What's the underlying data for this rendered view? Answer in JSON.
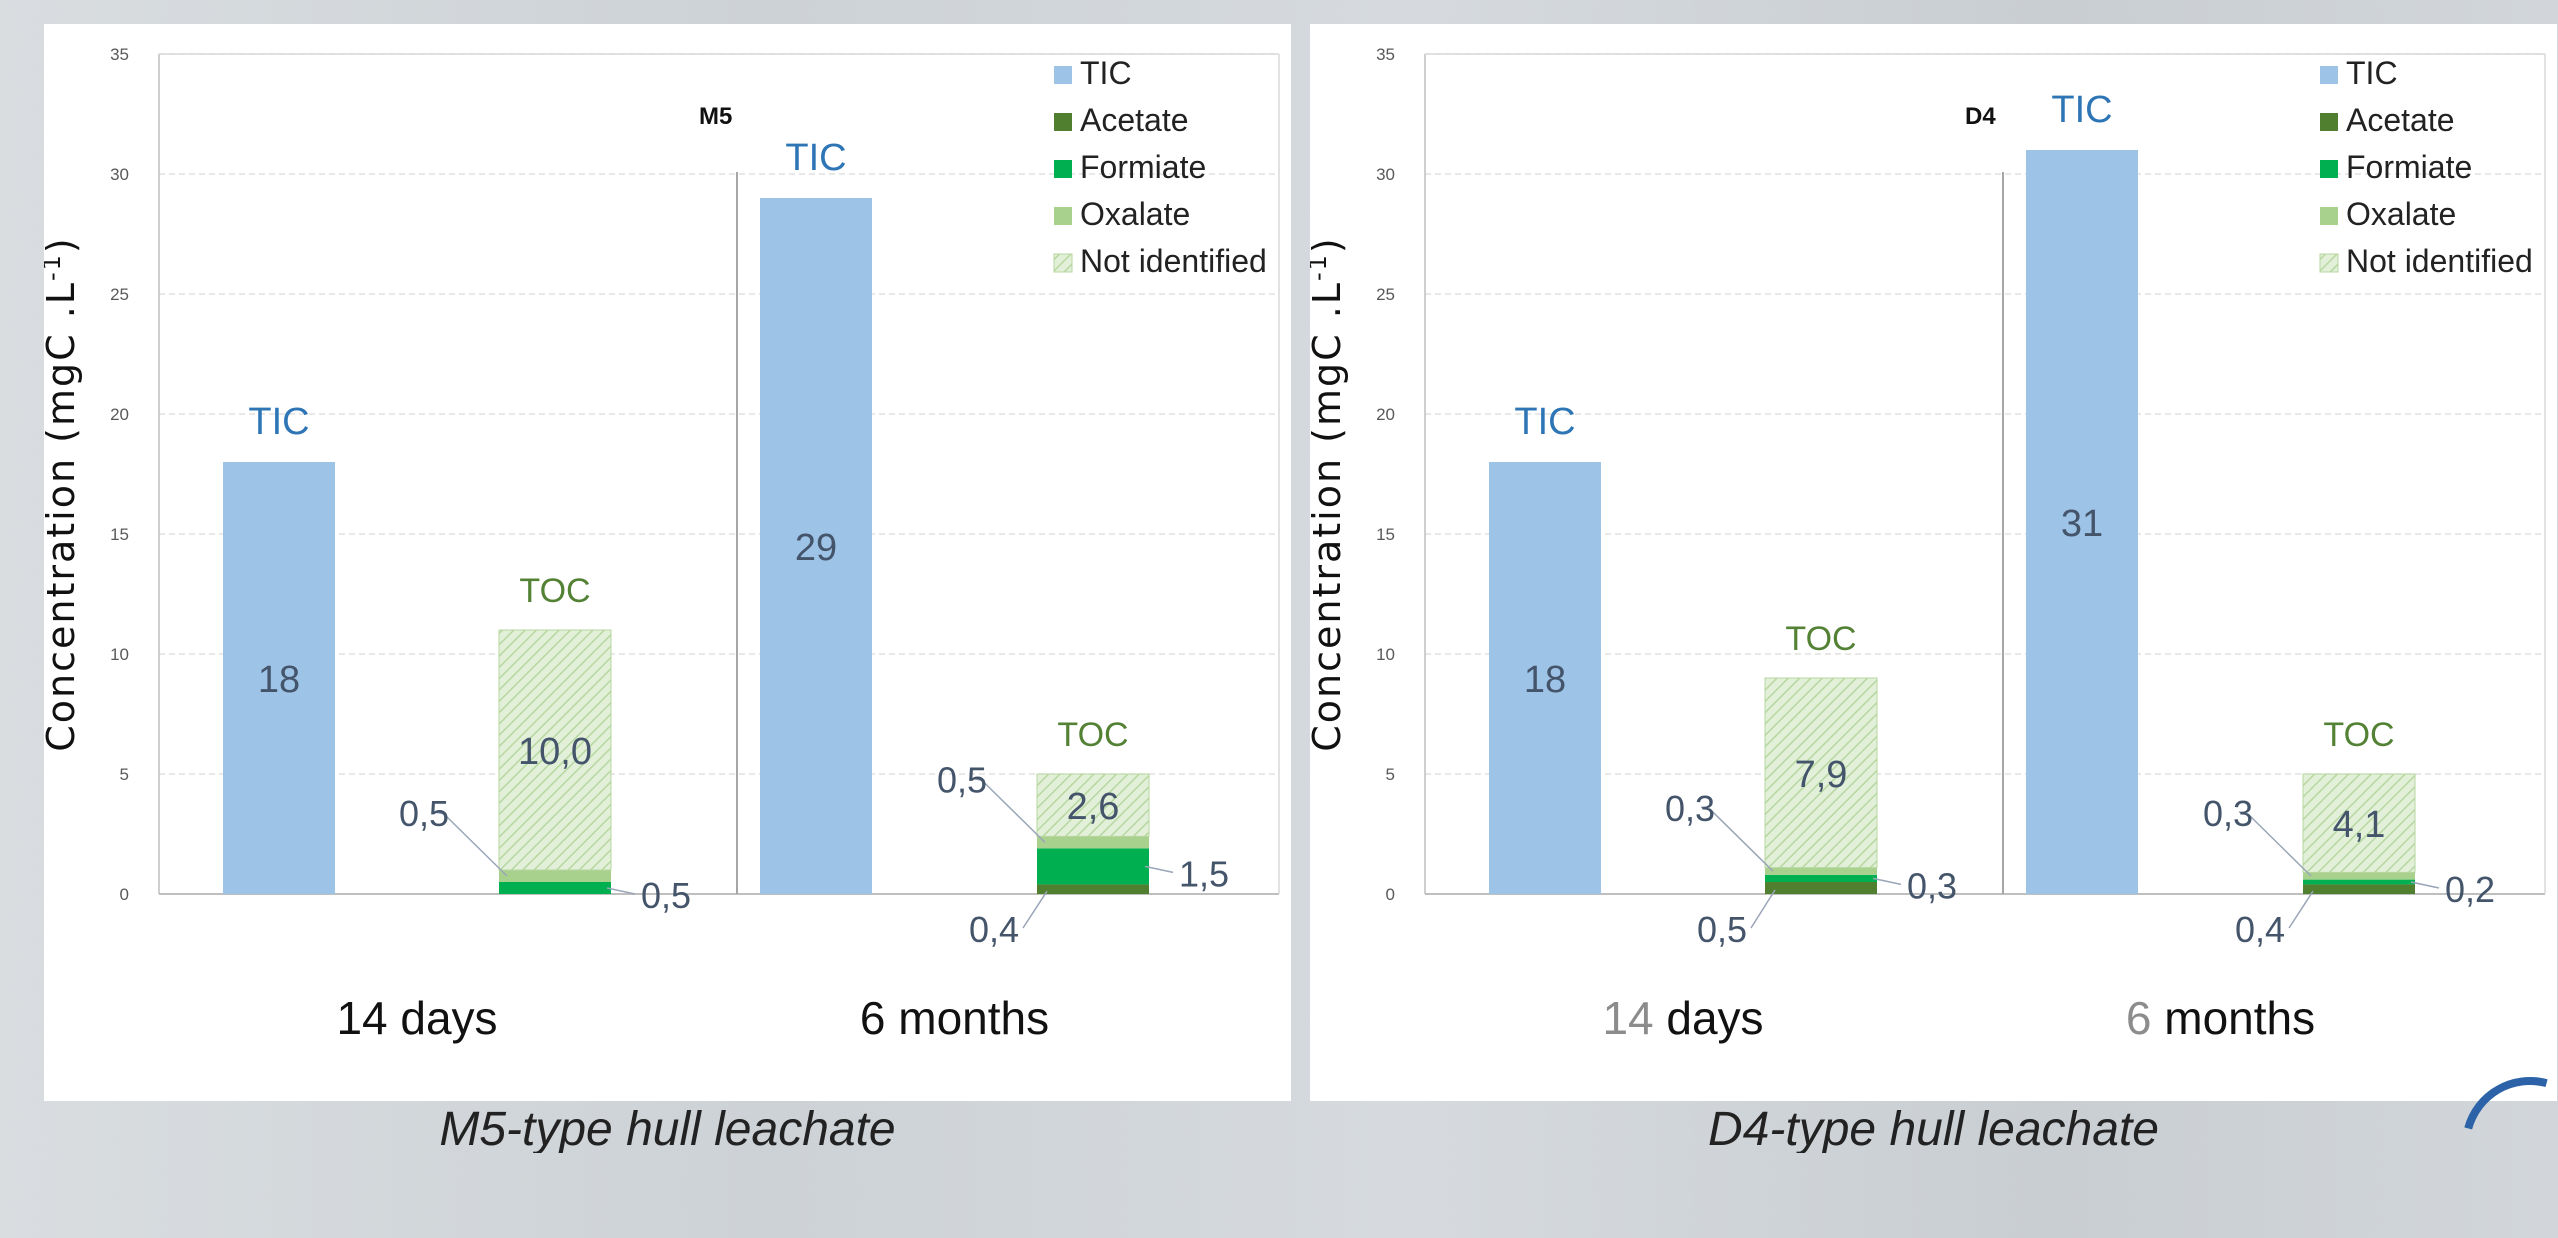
{
  "colors": {
    "tic": "#9dc3e6",
    "acetate": "#4f7f2f",
    "formiate": "#00b050",
    "oxalate": "#a9d18e",
    "not_identified": "#e2efd9",
    "not_identified_hatch": "#b7d7a0",
    "tic_label": "#2e75b6",
    "toc_label": "#548235",
    "value_label": "#44546a",
    "axis_text": "#595959",
    "grid": "#e0e0e0"
  },
  "chart_data": [
    {
      "type": "bar",
      "panel": "left",
      "ylabel": "Concentration (mgC .L",
      "ylabel_sup": "-1",
      "ylabel_tail": ")",
      "ylim": [
        0,
        35
      ],
      "yticks": [
        0,
        5,
        10,
        15,
        20,
        25,
        30,
        35
      ],
      "grid": true,
      "marker_label": "M5",
      "legend": {
        "position": "top-right",
        "items": [
          {
            "key": "tic",
            "label": "TIC"
          },
          {
            "key": "acetate",
            "label": "Acetate"
          },
          {
            "key": "formiate",
            "label": "Formiate"
          },
          {
            "key": "oxalate",
            "label": "Oxalate"
          },
          {
            "key": "not_identified",
            "label": "Not identified"
          }
        ]
      },
      "groups": [
        {
          "category": "14 days",
          "tic": {
            "label": "TIC",
            "value": 18,
            "value_label": "18"
          },
          "toc": {
            "label": "TOC",
            "segments": {
              "acetate": 0,
              "formiate": 0.5,
              "oxalate": 0.5,
              "not_identified": 10.0
            },
            "value_label": "10,0",
            "callouts": [
              {
                "text": "0,5",
                "target": "oxalate",
                "side": "left"
              },
              {
                "text": "0,5",
                "target": "formiate",
                "side": "right"
              }
            ]
          }
        },
        {
          "category": "6 months",
          "tic": {
            "label": "TIC",
            "value": 29,
            "value_label": "29"
          },
          "toc": {
            "label": "TOC",
            "segments": {
              "acetate": 0.4,
              "formiate": 1.5,
              "oxalate": 0.5,
              "not_identified": 2.6
            },
            "value_label": "2,6",
            "callouts": [
              {
                "text": "0,5",
                "target": "oxalate",
                "side": "left"
              },
              {
                "text": "1,5",
                "target": "formiate",
                "side": "right"
              },
              {
                "text": "0,4",
                "target": "acetate",
                "side": "below"
              }
            ]
          }
        }
      ],
      "caption": "M5-type hull leachate"
    },
    {
      "type": "bar",
      "panel": "right",
      "ylabel": "Concentration (mgC .L",
      "ylabel_sup": "-1",
      "ylabel_tail": ")",
      "ylim": [
        0,
        35
      ],
      "yticks": [
        0,
        5,
        10,
        15,
        20,
        25,
        30,
        35
      ],
      "grid": true,
      "marker_label": "D4",
      "legend": {
        "position": "top-right",
        "items": [
          {
            "key": "tic",
            "label": "TIC"
          },
          {
            "key": "acetate",
            "label": "Acetate"
          },
          {
            "key": "formiate",
            "label": "Formiate"
          },
          {
            "key": "oxalate",
            "label": "Oxalate"
          },
          {
            "key": "not_identified",
            "label": "Not identified"
          }
        ]
      },
      "groups": [
        {
          "category": "14 days",
          "category_number": "14",
          "category_unit": "days",
          "tic": {
            "label": "TIC",
            "value": 18,
            "value_label": "18"
          },
          "toc": {
            "label": "TOC",
            "segments": {
              "acetate": 0.5,
              "formiate": 0.3,
              "oxalate": 0.3,
              "not_identified": 7.9
            },
            "value_label": "7,9",
            "callouts": [
              {
                "text": "0,3",
                "target": "oxalate",
                "side": "left"
              },
              {
                "text": "0,3",
                "target": "formiate",
                "side": "right"
              },
              {
                "text": "0,5",
                "target": "acetate",
                "side": "below"
              }
            ]
          }
        },
        {
          "category": "6 months",
          "category_number": "6",
          "category_unit": "months",
          "tic": {
            "label": "TIC",
            "value": 31,
            "value_label": "31"
          },
          "toc": {
            "label": "TOC",
            "segments": {
              "acetate": 0.4,
              "formiate": 0.2,
              "oxalate": 0.3,
              "not_identified": 4.1
            },
            "value_label": "4,1",
            "callouts": [
              {
                "text": "0,3",
                "target": "oxalate",
                "side": "left"
              },
              {
                "text": "0,2",
                "target": "formiate",
                "side": "right"
              },
              {
                "text": "0,4",
                "target": "acetate",
                "side": "below"
              }
            ]
          }
        }
      ],
      "caption": "D4-type hull leachate"
    }
  ]
}
